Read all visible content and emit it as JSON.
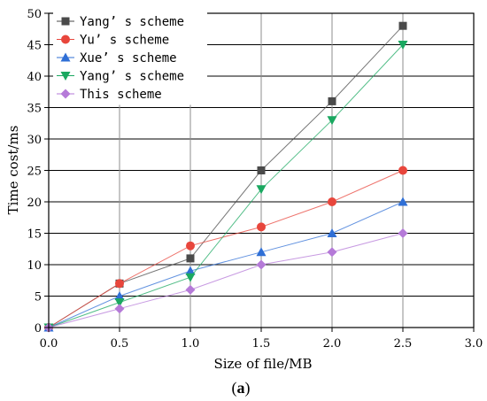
{
  "chart_data": {
    "type": "line",
    "x": [
      0.0,
      0.5,
      1.0,
      1.5,
      2.0,
      2.5
    ],
    "xlabel": "Size of file/MB",
    "ylabel": "Time cost/ms",
    "xlim": [
      0.0,
      3.0
    ],
    "ylim": [
      0,
      50
    ],
    "x_ticks": [
      "0.0",
      "0.5",
      "1.0",
      "1.5",
      "2.0",
      "2.5",
      "3.0"
    ],
    "y_ticks": [
      "0",
      "5",
      "10",
      "15",
      "20",
      "25",
      "30",
      "35",
      "40",
      "45",
      "50"
    ],
    "grid": true,
    "legend_position": "top-left",
    "series": [
      {
        "name": "Yang’ s scheme",
        "values": [
          0,
          7,
          11,
          25,
          36,
          48
        ],
        "color": "#4a4a4a",
        "marker": "square"
      },
      {
        "name": "Yu’ s scheme",
        "values": [
          0,
          7,
          13,
          16,
          20,
          25
        ],
        "color": "#e8463c",
        "marker": "circle"
      },
      {
        "name": "Xue’ s scheme",
        "values": [
          0,
          5,
          9,
          12,
          15,
          20
        ],
        "color": "#2f6fd6",
        "marker": "triangle-up"
      },
      {
        "name": "Yang’ s scheme",
        "values": [
          0,
          4,
          8,
          22,
          33,
          45
        ],
        "color": "#1aa860",
        "marker": "triangle-down"
      },
      {
        "name": "This scheme",
        "values": [
          0,
          3,
          6,
          10,
          12,
          15
        ],
        "color": "#b57ad8",
        "marker": "diamond"
      }
    ]
  },
  "caption": {
    "open": "(",
    "letter": "a",
    "close": ")"
  }
}
